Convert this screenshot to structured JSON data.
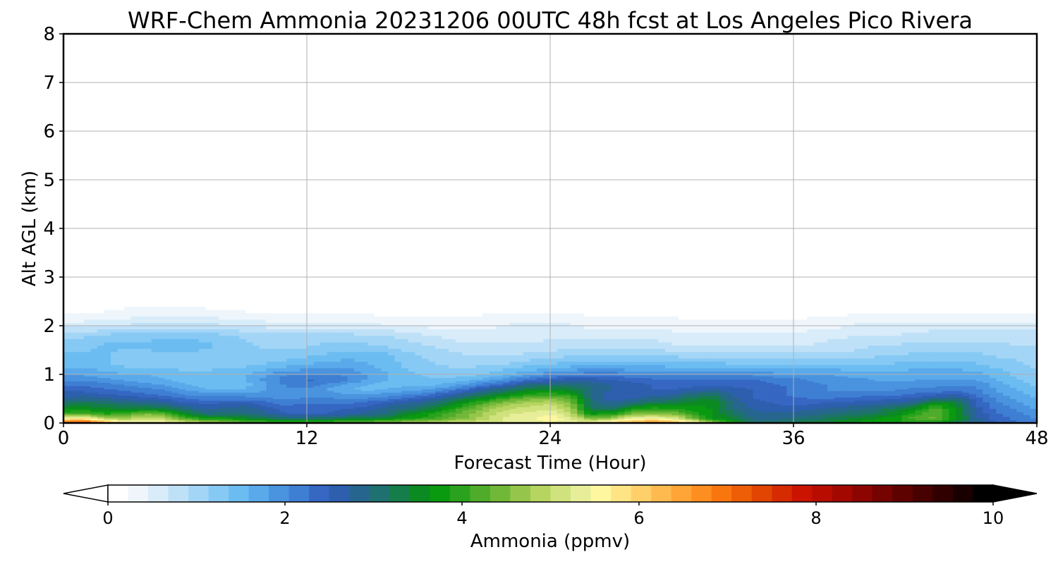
{
  "chart_data": {
    "type": "heatmap",
    "title": "WRF-Chem Ammonia  20231206 00UTC 48h fcst at Los Angeles Pico Rivera",
    "xlabel": "Forecast Time (Hour)",
    "ylabel": "Alt AGL (km)",
    "xlim": [
      0,
      48
    ],
    "ylim": [
      0,
      8
    ],
    "x_ticks": [
      "0",
      "12",
      "24",
      "36",
      "48"
    ],
    "y_ticks": [
      "0",
      "1",
      "2",
      "3",
      "4",
      "5",
      "6",
      "7",
      "8"
    ],
    "grid": true,
    "colorbar": {
      "label": "Ammonia  (ppmv)",
      "range": [
        0,
        10
      ],
      "ticks": [
        "0",
        "2",
        "4",
        "6",
        "8",
        "10"
      ],
      "extend": "both",
      "colors": [
        "#ffffff",
        "#eef6fc",
        "#d8ecfa",
        "#bfe1f8",
        "#a3d5f6",
        "#86c9f4",
        "#6bbcf1",
        "#5aaaeb",
        "#4a93df",
        "#3f7fd3",
        "#3567c3",
        "#2d5fae",
        "#26668e",
        "#1f7070",
        "#157d4a",
        "#0c8a22",
        "#099a10",
        "#2ba21e",
        "#4eac2a",
        "#72b838",
        "#95c64b",
        "#b5d460",
        "#d0e27d",
        "#e7ee9a",
        "#fff7a0",
        "#ffe485",
        "#ffd06a",
        "#ffba4f",
        "#ffa436",
        "#ff8e20",
        "#f9760f",
        "#ee5e06",
        "#e24402",
        "#d62a00",
        "#ca1400",
        "#b80c00",
        "#a20800",
        "#8c0500",
        "#750300",
        "#5e0200",
        "#470100",
        "#300000",
        "#180000",
        "#000000"
      ]
    },
    "x": [
      0,
      1,
      2,
      3,
      4,
      5,
      6,
      7,
      8,
      9,
      10,
      11,
      12,
      13,
      14,
      15,
      16,
      17,
      18,
      19,
      20,
      21,
      22,
      23,
      24,
      25,
      26,
      27,
      28,
      29,
      30,
      31,
      32,
      33,
      34,
      35,
      36,
      37,
      38,
      39,
      40,
      41,
      42,
      43,
      44,
      45,
      46,
      47,
      48
    ],
    "y": [
      0,
      0.1,
      0.2,
      0.3,
      0.4,
      0.5,
      0.6,
      0.7,
      0.8,
      0.9,
      1.0,
      1.2,
      1.4,
      1.6,
      1.8,
      2.0,
      2.2,
      2.4,
      2.6,
      3.0,
      4.0,
      8.0
    ],
    "values": [
      [
        7.6,
        7.9,
        6.8,
        5.7,
        5.5,
        5.6,
        5.4,
        5.0,
        4.8,
        4.5,
        4.4,
        4.3,
        4.4,
        4.5,
        4.6,
        4.7,
        4.9,
        5.0,
        5.1,
        5.2,
        5.2,
        5.3,
        5.3,
        5.3,
        5.4,
        5.2,
        5.8,
        6.2,
        6.6,
        6.9,
        6.8,
        5.9,
        4.8,
        3.9,
        3.1,
        3.1,
        3.3,
        3.4,
        3.5,
        3.7,
        3.9,
        3.7,
        3.8,
        3.8,
        3.2,
        2.8,
        2.5,
        2.3,
        2.1
      ],
      [
        5.5,
        5.6,
        4.9,
        4.8,
        5.0,
        4.9,
        4.2,
        3.8,
        3.8,
        3.5,
        3.3,
        3.0,
        3.0,
        3.1,
        3.3,
        3.4,
        3.5,
        3.8,
        4.0,
        4.3,
        4.6,
        5.0,
        5.3,
        5.4,
        5.7,
        5.3,
        4.5,
        4.7,
        5.4,
        5.5,
        5.3,
        4.5,
        3.7,
        3.4,
        2.9,
        2.9,
        3.0,
        3.1,
        3.3,
        3.4,
        3.6,
        3.8,
        4.2,
        4.4,
        3.7,
        2.8,
        2.4,
        2.2,
        2.0
      ],
      [
        4.1,
        4.2,
        3.9,
        4.0,
        4.5,
        4.3,
        3.5,
        3.0,
        3.0,
        3.0,
        2.8,
        2.5,
        2.5,
        2.5,
        2.6,
        2.8,
        3.0,
        3.5,
        3.8,
        4.2,
        4.5,
        4.9,
        5.2,
        5.3,
        5.4,
        5.0,
        3.7,
        3.8,
        4.4,
        4.6,
        4.5,
        4.0,
        3.6,
        3.2,
        2.8,
        2.8,
        2.8,
        2.9,
        3.0,
        3.1,
        3.2,
        3.5,
        4.0,
        4.3,
        3.6,
        2.7,
        2.3,
        2.1,
        1.9
      ],
      [
        3.6,
        3.6,
        3.5,
        3.4,
        3.4,
        3.3,
        3.0,
        2.7,
        2.8,
        2.9,
        2.6,
        2.4,
        2.4,
        2.4,
        2.5,
        2.6,
        2.8,
        3.0,
        3.3,
        3.8,
        4.3,
        4.7,
        5.0,
        5.1,
        5.2,
        4.8,
        3.2,
        3.1,
        3.7,
        4.0,
        3.9,
        3.8,
        3.6,
        3.0,
        2.7,
        2.6,
        2.6,
        2.7,
        2.8,
        2.9,
        3.0,
        3.3,
        3.6,
        4.2,
        3.6,
        2.6,
        2.2,
        2.0,
        1.8
      ],
      [
        3.2,
        3.3,
        3.2,
        3.1,
        3.0,
        2.9,
        2.6,
        2.5,
        2.6,
        2.6,
        2.4,
        2.2,
        2.3,
        2.3,
        2.3,
        2.4,
        2.6,
        2.8,
        3.0,
        3.4,
        3.9,
        4.4,
        4.8,
        4.9,
        5.0,
        4.6,
        3.1,
        2.8,
        3.1,
        3.4,
        3.4,
        3.6,
        3.6,
        2.9,
        2.6,
        2.5,
        2.4,
        2.5,
        2.6,
        2.6,
        2.7,
        2.8,
        3.0,
        3.8,
        3.5,
        2.5,
        2.1,
        1.9,
        1.7
      ],
      [
        2.8,
        2.9,
        2.8,
        2.7,
        2.6,
        2.5,
        2.3,
        2.2,
        2.2,
        2.2,
        2.1,
        2.0,
        2.1,
        2.1,
        2.0,
        2.1,
        2.2,
        2.4,
        2.6,
        3.0,
        3.4,
        3.8,
        4.2,
        4.5,
        4.6,
        4.3,
        3.0,
        2.6,
        2.7,
        2.9,
        3.0,
        3.3,
        3.5,
        2.8,
        2.5,
        2.4,
        2.3,
        2.3,
        2.3,
        2.4,
        2.4,
        2.5,
        2.6,
        3.0,
        3.0,
        2.4,
        2.0,
        1.8,
        1.6
      ],
      [
        2.6,
        2.6,
        2.5,
        2.4,
        2.3,
        2.2,
        2.0,
        1.9,
        1.9,
        1.9,
        1.9,
        1.9,
        1.9,
        1.9,
        1.8,
        1.8,
        1.9,
        2.0,
        2.2,
        2.5,
        2.9,
        3.2,
        3.6,
        3.9,
        4.0,
        3.8,
        3.0,
        2.6,
        2.6,
        2.6,
        2.7,
        3.0,
        3.1,
        2.7,
        2.5,
        2.4,
        2.2,
        2.1,
        2.1,
        2.1,
        2.2,
        2.2,
        2.3,
        2.4,
        2.5,
        2.2,
        1.9,
        1.7,
        1.5
      ],
      [
        2.4,
        2.4,
        2.3,
        2.2,
        2.1,
        2.0,
        1.8,
        1.6,
        1.6,
        1.6,
        1.8,
        2.0,
        2.0,
        1.8,
        1.6,
        1.5,
        1.6,
        1.7,
        1.8,
        2.0,
        2.4,
        2.8,
        3.1,
        3.4,
        3.5,
        3.4,
        3.0,
        2.7,
        2.6,
        2.5,
        2.5,
        2.6,
        2.7,
        2.6,
        2.5,
        2.4,
        2.2,
        2.1,
        2.0,
        2.0,
        2.0,
        2.0,
        2.1,
        2.1,
        2.2,
        2.1,
        1.8,
        1.6,
        1.4
      ],
      [
        2.2,
        2.2,
        2.1,
        2.0,
        1.9,
        1.8,
        1.6,
        1.4,
        1.4,
        1.5,
        1.8,
        2.1,
        2.2,
        2.0,
        1.8,
        1.6,
        1.5,
        1.5,
        1.5,
        1.7,
        1.9,
        2.2,
        2.5,
        2.9,
        3.0,
        3.0,
        2.9,
        2.7,
        2.6,
        2.5,
        2.4,
        2.4,
        2.4,
        2.4,
        2.4,
        2.3,
        2.2,
        2.1,
        2.0,
        1.9,
        1.9,
        1.9,
        1.9,
        2.0,
        2.0,
        2.0,
        1.7,
        1.5,
        1.3
      ],
      [
        2.0,
        2.0,
        1.9,
        1.8,
        1.7,
        1.6,
        1.5,
        1.4,
        1.5,
        1.6,
        1.9,
        2.2,
        2.3,
        2.3,
        2.1,
        1.8,
        1.6,
        1.5,
        1.4,
        1.4,
        1.5,
        1.7,
        2.0,
        2.3,
        2.5,
        2.6,
        2.6,
        2.5,
        2.4,
        2.3,
        2.3,
        2.3,
        2.3,
        2.3,
        2.3,
        2.2,
        2.1,
        2.0,
        1.9,
        1.9,
        1.8,
        1.8,
        1.8,
        1.8,
        1.8,
        1.8,
        1.6,
        1.4,
        1.2
      ],
      [
        1.8,
        1.8,
        1.7,
        1.6,
        1.6,
        1.5,
        1.4,
        1.4,
        1.5,
        1.6,
        1.8,
        2.0,
        2.1,
        2.1,
        2.0,
        1.8,
        1.6,
        1.4,
        1.3,
        1.3,
        1.3,
        1.4,
        1.6,
        1.8,
        2.0,
        2.1,
        2.2,
        2.2,
        2.1,
        2.1,
        2.0,
        2.0,
        2.0,
        2.0,
        2.0,
        1.9,
        1.9,
        1.8,
        1.8,
        1.7,
        1.7,
        1.7,
        1.7,
        1.7,
        1.7,
        1.7,
        1.5,
        1.3,
        1.2
      ],
      [
        1.5,
        1.5,
        1.4,
        1.3,
        1.3,
        1.3,
        1.3,
        1.3,
        1.3,
        1.3,
        1.4,
        1.5,
        1.6,
        1.7,
        1.7,
        1.6,
        1.5,
        1.3,
        1.2,
        1.1,
        1.1,
        1.1,
        1.2,
        1.3,
        1.4,
        1.5,
        1.5,
        1.5,
        1.5,
        1.5,
        1.5,
        1.5,
        1.5,
        1.4,
        1.4,
        1.4,
        1.4,
        1.4,
        1.4,
        1.4,
        1.4,
        1.4,
        1.5,
        1.5,
        1.5,
        1.4,
        1.3,
        1.2,
        1.1
      ],
      [
        1.4,
        1.4,
        1.4,
        1.3,
        1.3,
        1.3,
        1.3,
        1.3,
        1.3,
        1.2,
        1.2,
        1.2,
        1.3,
        1.4,
        1.5,
        1.5,
        1.4,
        1.2,
        1.1,
        1.0,
        0.9,
        0.9,
        0.9,
        1.0,
        1.0,
        1.1,
        1.1,
        1.1,
        1.1,
        1.1,
        1.1,
        1.0,
        1.0,
        1.0,
        1.0,
        1.0,
        1.0,
        1.0,
        1.0,
        1.0,
        1.1,
        1.1,
        1.2,
        1.2,
        1.2,
        1.2,
        1.1,
        1.1,
        1.0
      ],
      [
        1.3,
        1.3,
        1.4,
        1.4,
        1.4,
        1.5,
        1.5,
        1.4,
        1.3,
        1.2,
        1.1,
        1.1,
        1.1,
        1.2,
        1.2,
        1.2,
        1.1,
        1.0,
        0.9,
        0.8,
        0.7,
        0.7,
        0.7,
        0.7,
        0.8,
        0.8,
        0.8,
        0.8,
        0.8,
        0.8,
        0.7,
        0.7,
        0.7,
        0.7,
        0.7,
        0.7,
        0.7,
        0.7,
        0.8,
        0.8,
        0.9,
        0.9,
        1.0,
        1.0,
        1.0,
        1.0,
        1.0,
        0.9,
        0.9
      ],
      [
        1.1,
        1.1,
        1.2,
        1.3,
        1.3,
        1.3,
        1.3,
        1.3,
        1.2,
        1.1,
        1.0,
        1.0,
        1.0,
        1.0,
        1.0,
        0.9,
        0.9,
        0.8,
        0.7,
        0.6,
        0.6,
        0.6,
        0.6,
        0.6,
        0.6,
        0.6,
        0.6,
        0.6,
        0.6,
        0.6,
        0.5,
        0.5,
        0.5,
        0.5,
        0.5,
        0.5,
        0.5,
        0.6,
        0.6,
        0.7,
        0.7,
        0.7,
        0.8,
        0.8,
        0.8,
        0.8,
        0.8,
        0.8,
        0.8
      ],
      [
        0.6,
        0.6,
        0.7,
        0.7,
        0.8,
        0.8,
        0.8,
        0.8,
        0.7,
        0.7,
        0.6,
        0.6,
        0.6,
        0.6,
        0.6,
        0.5,
        0.5,
        0.5,
        0.4,
        0.4,
        0.4,
        0.4,
        0.5,
        0.5,
        0.5,
        0.5,
        0.4,
        0.4,
        0.4,
        0.4,
        0.4,
        0.3,
        0.3,
        0.3,
        0.3,
        0.3,
        0.3,
        0.4,
        0.4,
        0.5,
        0.5,
        0.5,
        0.5,
        0.6,
        0.6,
        0.6,
        0.6,
        0.6,
        0.6
      ],
      [
        0.3,
        0.3,
        0.3,
        0.4,
        0.4,
        0.4,
        0.4,
        0.4,
        0.4,
        0.3,
        0.3,
        0.3,
        0.3,
        0.3,
        0.3,
        0.3,
        0.2,
        0.2,
        0.2,
        0.2,
        0.2,
        0.3,
        0.3,
        0.3,
        0.3,
        0.3,
        0.2,
        0.2,
        0.2,
        0.2,
        0.2,
        0.2,
        0.2,
        0.2,
        0.2,
        0.2,
        0.2,
        0.2,
        0.2,
        0.3,
        0.3,
        0.3,
        0.3,
        0.3,
        0.3,
        0.3,
        0.3,
        0.3,
        0.3
      ],
      [
        0.15,
        0.15,
        0.15,
        0.2,
        0.2,
        0.2,
        0.2,
        0.2,
        0.15,
        0.15,
        0.15,
        0.15,
        0.15,
        0.15,
        0.15,
        0.1,
        0.1,
        0.1,
        0.1,
        0.1,
        0.1,
        0.1,
        0.15,
        0.15,
        0.15,
        0.15,
        0.1,
        0.1,
        0.1,
        0.1,
        0.1,
        0.1,
        0.1,
        0.1,
        0.1,
        0.1,
        0.1,
        0.1,
        0.1,
        0.1,
        0.1,
        0.15,
        0.15,
        0.15,
        0.15,
        0.15,
        0.15,
        0.15,
        0.15
      ],
      [
        0.07,
        0.07,
        0.07,
        0.08,
        0.08,
        0.08,
        0.08,
        0.08,
        0.07,
        0.07,
        0.07,
        0.07,
        0.07,
        0.07,
        0.06,
        0.06,
        0.06,
        0.06,
        0.06,
        0.06,
        0.06,
        0.06,
        0.06,
        0.06,
        0.06,
        0.06,
        0.06,
        0.06,
        0.06,
        0.06,
        0.06,
        0.06,
        0.06,
        0.06,
        0.06,
        0.06,
        0.06,
        0.06,
        0.06,
        0.06,
        0.06,
        0.06,
        0.06,
        0.06,
        0.06,
        0.06,
        0.06,
        0.06,
        0.06
      ],
      [
        0.03,
        0.03,
        0.03,
        0.03,
        0.03,
        0.03,
        0.03,
        0.03,
        0.03,
        0.03,
        0.03,
        0.03,
        0.03,
        0.03,
        0.03,
        0.03,
        0.03,
        0.03,
        0.03,
        0.03,
        0.03,
        0.03,
        0.03,
        0.03,
        0.03,
        0.03,
        0.03,
        0.03,
        0.03,
        0.03,
        0.03,
        0.03,
        0.03,
        0.03,
        0.03,
        0.03,
        0.03,
        0.03,
        0.03,
        0.03,
        0.03,
        0.03,
        0.03,
        0.03,
        0.03,
        0.03,
        0.03,
        0.03,
        0.03
      ],
      [
        0.02,
        0.02,
        0.02,
        0.02,
        0.02,
        0.02,
        0.02,
        0.02,
        0.02,
        0.02,
        0.02,
        0.02,
        0.02,
        0.02,
        0.02,
        0.02,
        0.02,
        0.02,
        0.02,
        0.02,
        0.02,
        0.02,
        0.02,
        0.02,
        0.02,
        0.02,
        0.02,
        0.02,
        0.02,
        0.02,
        0.02,
        0.02,
        0.02,
        0.02,
        0.02,
        0.02,
        0.02,
        0.02,
        0.02,
        0.02,
        0.02,
        0.02,
        0.02,
        0.02,
        0.02,
        0.02,
        0.02,
        0.02,
        0.02
      ],
      [
        0.02,
        0.02,
        0.02,
        0.02,
        0.02,
        0.02,
        0.02,
        0.02,
        0.02,
        0.02,
        0.02,
        0.02,
        0.02,
        0.02,
        0.02,
        0.02,
        0.02,
        0.02,
        0.02,
        0.02,
        0.02,
        0.02,
        0.02,
        0.02,
        0.02,
        0.02,
        0.02,
        0.02,
        0.02,
        0.02,
        0.02,
        0.02,
        0.02,
        0.02,
        0.02,
        0.02,
        0.02,
        0.02,
        0.02,
        0.02,
        0.02,
        0.02,
        0.02,
        0.02,
        0.02,
        0.02,
        0.02,
        0.02,
        0.02
      ]
    ]
  }
}
